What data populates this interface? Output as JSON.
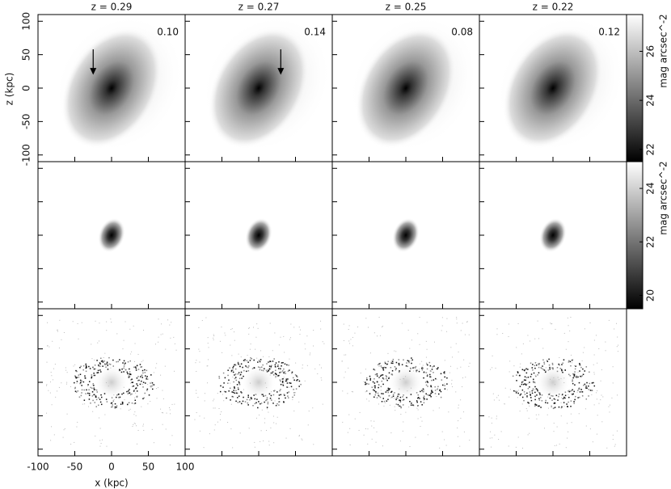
{
  "figure": {
    "columns": [
      {
        "redshift": "z = 0.29",
        "value": "0.10"
      },
      {
        "redshift": "z = 0.27",
        "value": "0.14"
      },
      {
        "redshift": "z = 0.25",
        "value": "0.08"
      },
      {
        "redshift": "z = 0.22",
        "value": "0.12"
      }
    ],
    "x_axis": {
      "label": "x (kpc)",
      "lim": [
        -100,
        100
      ],
      "ticks": [
        -100,
        -50,
        0,
        50,
        100
      ]
    },
    "y_axis": {
      "label": "z (kpc)",
      "lim": [
        -110,
        110
      ],
      "ticks": [
        100,
        50,
        0,
        -50,
        -100
      ]
    },
    "colorbars": [
      {
        "label": "mag arcsec^-2",
        "lim": [
          21.5,
          27.5
        ],
        "ticks": [
          26,
          24,
          22
        ]
      },
      {
        "label": "mag arcsec^-2",
        "lim": [
          19.5,
          25
        ],
        "ticks": [
          24,
          22,
          20
        ]
      }
    ]
  }
}
